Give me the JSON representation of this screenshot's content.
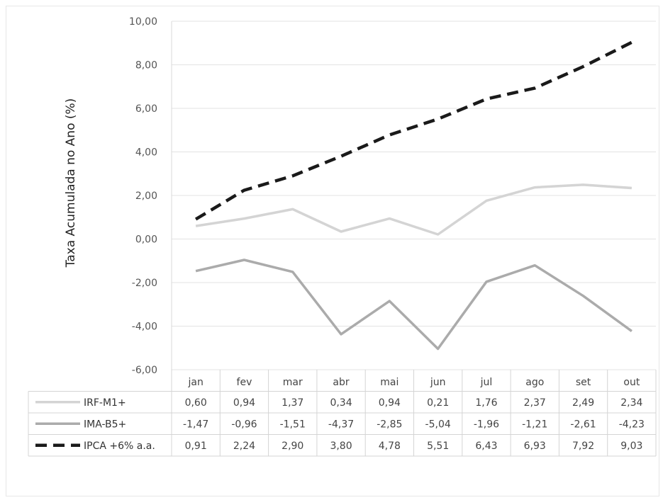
{
  "chart_data": {
    "type": "line",
    "title": "",
    "xlabel": "",
    "ylabel": "Taxa Acumulada no Ano (%)",
    "ylim": [
      -6,
      10
    ],
    "yticks": [
      "10,00",
      "8,00",
      "6,00",
      "4,00",
      "2,00",
      "0,00",
      "-2,00",
      "-4,00",
      "-6,00"
    ],
    "grid": true,
    "categories": [
      "jan",
      "fev",
      "mar",
      "abr",
      "mai",
      "jun",
      "jul",
      "ago",
      "set",
      "out"
    ],
    "series": [
      {
        "name": "IRF-M1+",
        "color": "#d4d4d4",
        "dashed": false,
        "values": [
          0.6,
          0.94,
          1.37,
          0.34,
          0.94,
          0.21,
          1.76,
          2.37,
          2.49,
          2.34
        ],
        "labels": [
          "0,60",
          "0,94",
          "1,37",
          "0,34",
          "0,94",
          "0,21",
          "1,76",
          "2,37",
          "2,49",
          "2,34"
        ]
      },
      {
        "name": "IMA-B5+",
        "color": "#ababab",
        "dashed": false,
        "values": [
          -1.47,
          -0.96,
          -1.51,
          -4.37,
          -2.85,
          -5.04,
          -1.96,
          -1.21,
          -2.61,
          -4.23
        ],
        "labels": [
          "-1,47",
          "-0,96",
          "-1,51",
          "-4,37",
          "-2,85",
          "-5,04",
          "-1,96",
          "-1,21",
          "-2,61",
          "-4,23"
        ]
      },
      {
        "name": "IPCA +6% a.a.",
        "color": "#1a1a1a",
        "dashed": true,
        "values": [
          0.91,
          2.24,
          2.9,
          3.8,
          4.78,
          5.51,
          6.43,
          6.93,
          7.92,
          9.03
        ],
        "labels": [
          "0,91",
          "2,24",
          "2,90",
          "3,80",
          "4,78",
          "5,51",
          "6,43",
          "6,93",
          "7,92",
          "9,03"
        ]
      }
    ]
  }
}
